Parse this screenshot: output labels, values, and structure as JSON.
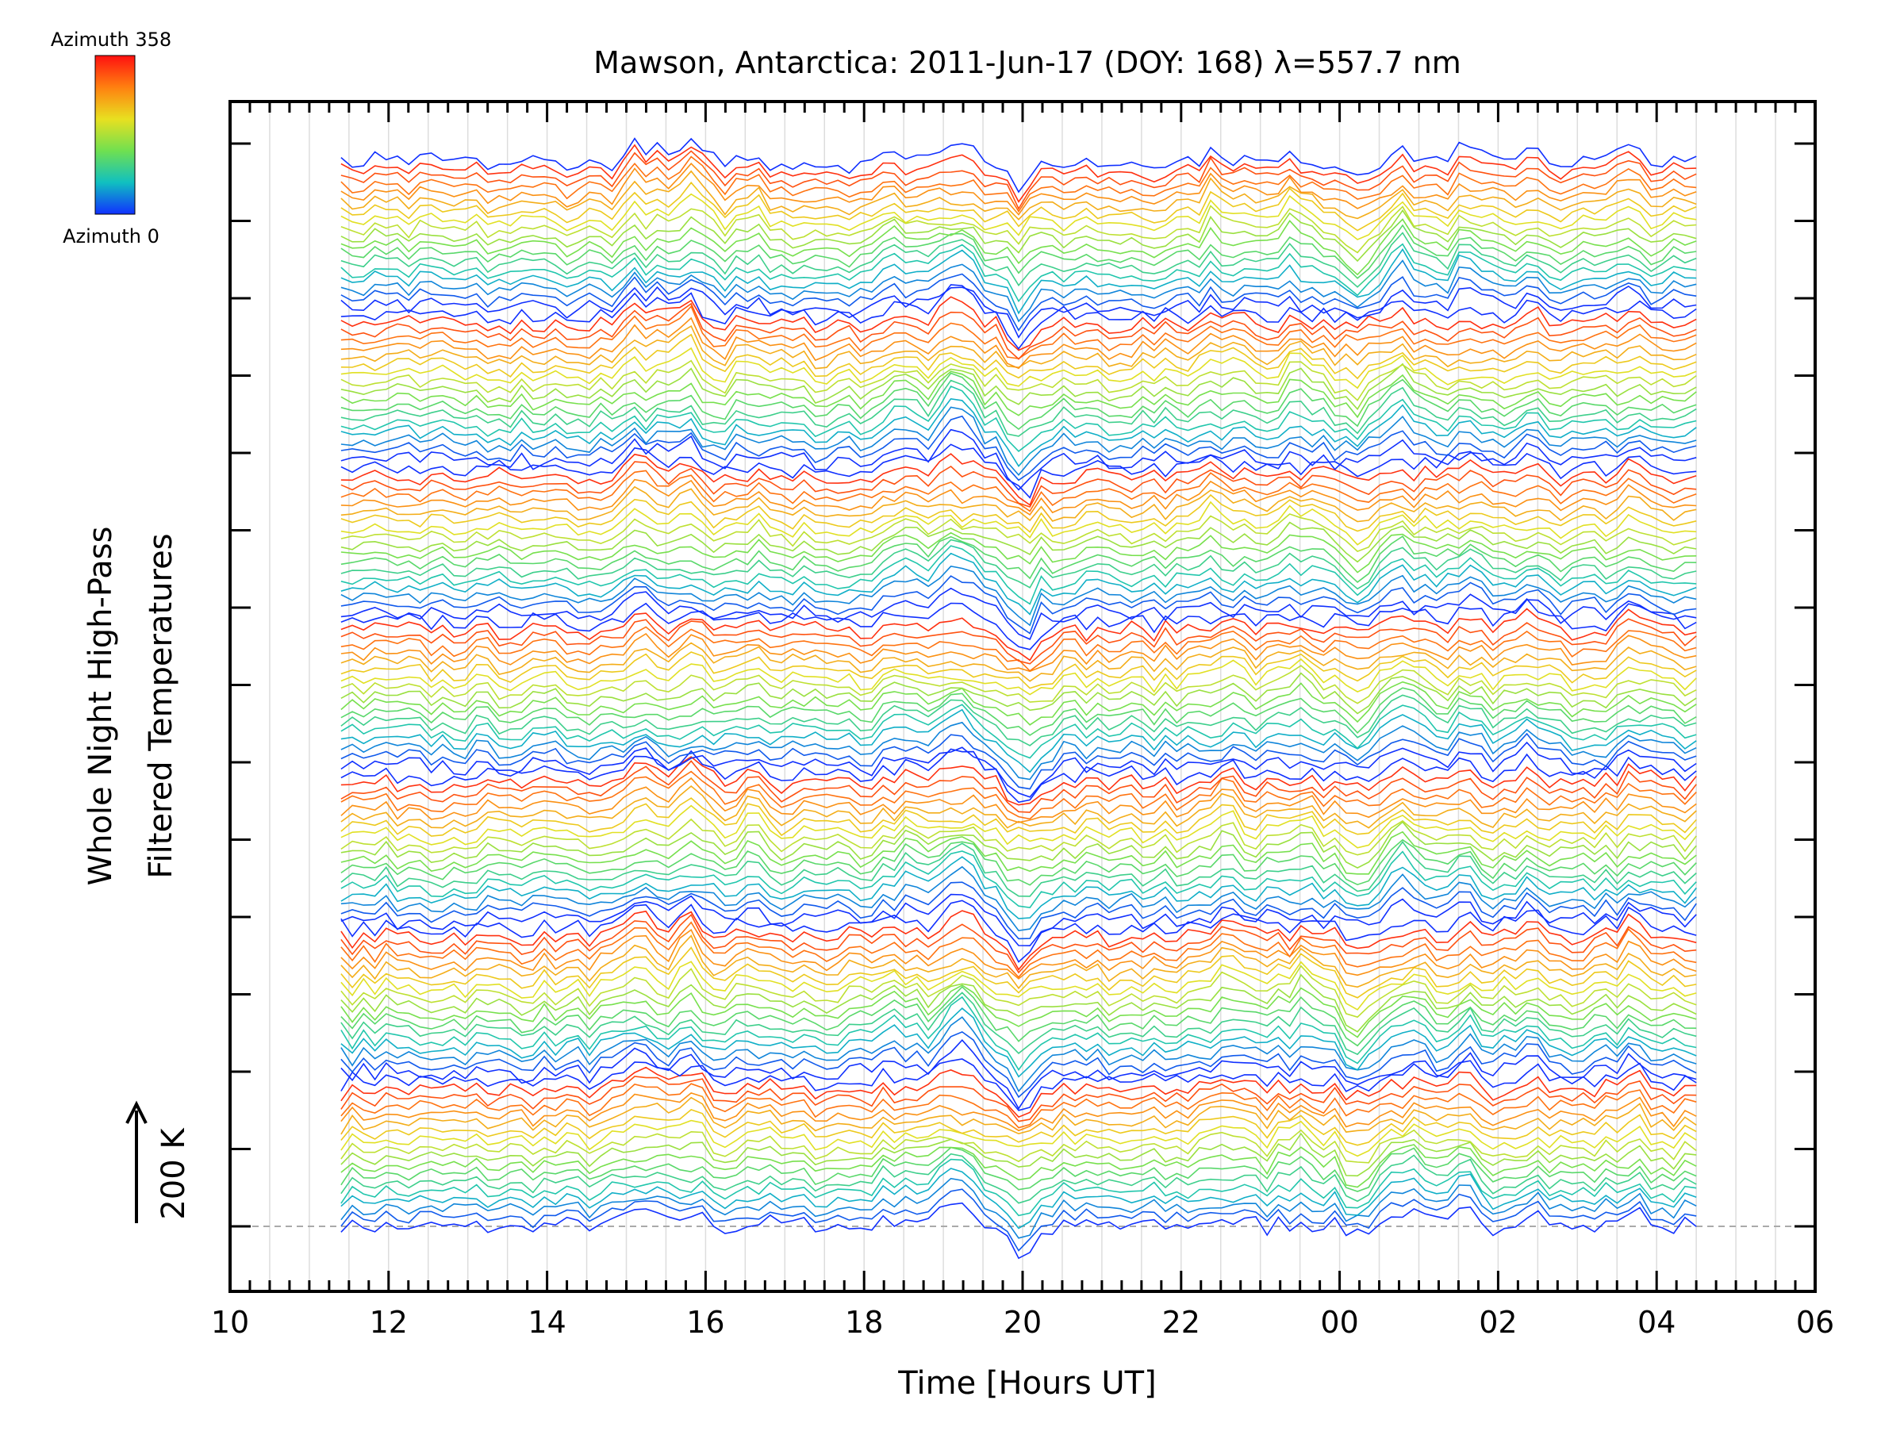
{
  "chart_data": {
    "type": "line",
    "title": "Mawson, Antarctica: 2011-Jun-17 (DOY: 168) λ=557.7 nm",
    "xlabel": "Time [Hours UT]",
    "ylabel_lines": [
      "Whole Night High-Pass",
      "Filtered Temperatures"
    ],
    "scale_bar_label": "200 K",
    "colorbar": {
      "top_label": "Azimuth 358",
      "bottom_label": "Azimuth 0",
      "colors": [
        "#1030ff",
        "#10c0c0",
        "#70e050",
        "#e8e020",
        "#ff8010",
        "#ff1010"
      ]
    },
    "x_tick_labels": [
      "10",
      "12",
      "14",
      "16",
      "18",
      "20",
      "22",
      "00",
      "02",
      "04",
      "06"
    ],
    "xlim": [
      10,
      30
    ],
    "grid": true,
    "legend": "none",
    "data_xrange": [
      11.4,
      28.5
    ],
    "series_groups": 7,
    "series_per_group": 18
  }
}
